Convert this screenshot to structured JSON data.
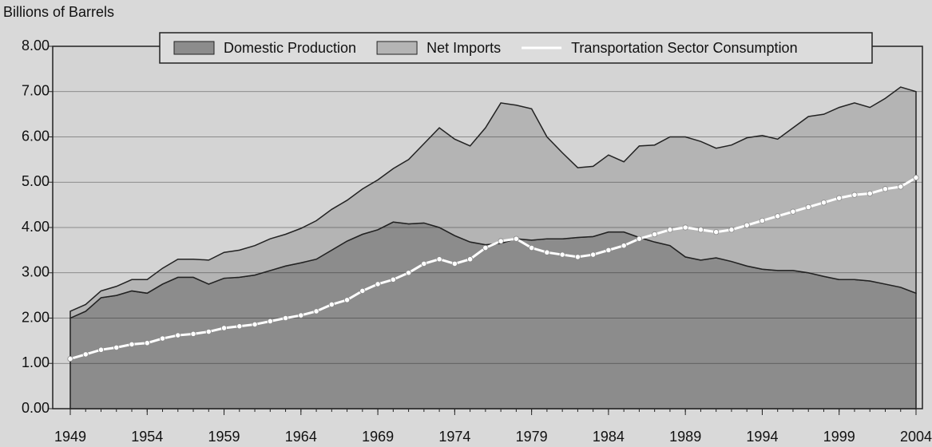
{
  "chart_data": {
    "type": "stacked-area-line",
    "y_axis_label": "Billions of Barrels",
    "x": [
      1949,
      1950,
      1951,
      1952,
      1953,
      1954,
      1955,
      1956,
      1957,
      1958,
      1959,
      1960,
      1961,
      1962,
      1963,
      1964,
      1965,
      1966,
      1967,
      1968,
      1969,
      1970,
      1971,
      1972,
      1973,
      1974,
      1975,
      1976,
      1977,
      1978,
      1979,
      1980,
      1981,
      1982,
      1983,
      1984,
      1985,
      1986,
      1987,
      1988,
      1989,
      1990,
      1991,
      1992,
      1993,
      1994,
      1995,
      1996,
      1997,
      1998,
      1999,
      2000,
      2001,
      2002,
      2003,
      2004
    ],
    "xlim": [
      1949,
      2004
    ],
    "xticks": [
      1949,
      1954,
      1959,
      1964,
      1969,
      1974,
      1979,
      1984,
      1989,
      1994,
      1999,
      2004
    ],
    "ylim": [
      0,
      8
    ],
    "yticks": [
      {
        "value": 0,
        "label": "0.00"
      },
      {
        "value": 1,
        "label": "1.00"
      },
      {
        "value": 2,
        "label": "2.00"
      },
      {
        "value": 3,
        "label": "3.00"
      },
      {
        "value": 4,
        "label": "4.00"
      },
      {
        "value": 5,
        "label": "5.00"
      },
      {
        "value": 6,
        "label": "6.00"
      },
      {
        "value": 7,
        "label": "7.00"
      },
      {
        "value": 8,
        "label": "8.00"
      }
    ],
    "grid": true,
    "series": [
      {
        "name": "Domestic Production",
        "color": "#8c8c8c",
        "kind": "area",
        "values": [
          2.0,
          2.15,
          2.45,
          2.5,
          2.6,
          2.55,
          2.75,
          2.9,
          2.9,
          2.75,
          2.88,
          2.9,
          2.95,
          3.05,
          3.15,
          3.22,
          3.3,
          3.5,
          3.7,
          3.85,
          3.95,
          4.12,
          4.08,
          4.1,
          4.0,
          3.82,
          3.68,
          3.62,
          3.65,
          3.75,
          3.72,
          3.75,
          3.75,
          3.78,
          3.8,
          3.9,
          3.9,
          3.78,
          3.68,
          3.6,
          3.35,
          3.28,
          3.33,
          3.25,
          3.15,
          3.08,
          3.05,
          3.05,
          3.0,
          2.92,
          2.85,
          2.85,
          2.82,
          2.75,
          2.68,
          2.55
        ]
      },
      {
        "name": "Net Imports",
        "color": "#b4b4b4",
        "kind": "area",
        "values": [
          0.15,
          0.15,
          0.15,
          0.2,
          0.25,
          0.3,
          0.35,
          0.4,
          0.4,
          0.53,
          0.57,
          0.6,
          0.65,
          0.7,
          0.7,
          0.76,
          0.85,
          0.9,
          0.9,
          1.0,
          1.1,
          1.18,
          1.42,
          1.75,
          2.2,
          2.13,
          2.12,
          2.58,
          3.1,
          2.95,
          2.9,
          2.25,
          1.9,
          1.54,
          1.55,
          1.7,
          1.55,
          2.02,
          2.14,
          2.4,
          2.65,
          2.62,
          2.42,
          2.57,
          2.83,
          2.95,
          2.9,
          3.15,
          3.45,
          3.58,
          3.8,
          3.9,
          3.83,
          4.1,
          4.42,
          4.45
        ]
      },
      {
        "name": "Transportation Sector Consumption",
        "color": "#ffffff",
        "kind": "line",
        "values": [
          1.1,
          1.2,
          1.3,
          1.35,
          1.42,
          1.45,
          1.55,
          1.62,
          1.65,
          1.7,
          1.78,
          1.82,
          1.86,
          1.93,
          2.0,
          2.06,
          2.15,
          2.3,
          2.4,
          2.6,
          2.75,
          2.85,
          3.0,
          3.2,
          3.3,
          3.2,
          3.3,
          3.55,
          3.7,
          3.75,
          3.55,
          3.45,
          3.4,
          3.35,
          3.4,
          3.5,
          3.6,
          3.75,
          3.85,
          3.95,
          4.0,
          3.95,
          3.9,
          3.95,
          4.05,
          4.15,
          4.25,
          4.35,
          4.45,
          4.55,
          4.65,
          4.72,
          4.75,
          4.85,
          4.9,
          5.1
        ]
      }
    ]
  }
}
